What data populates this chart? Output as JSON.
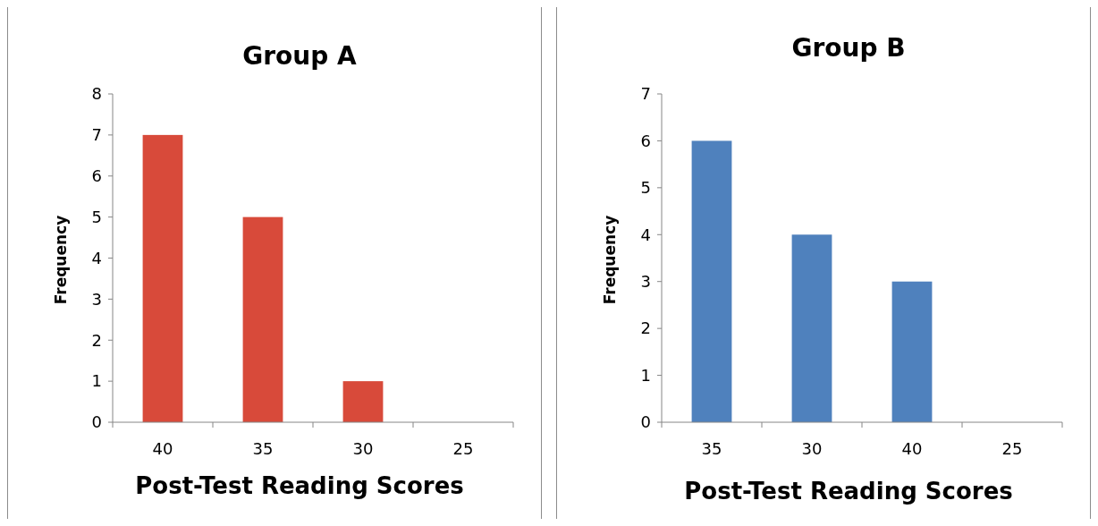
{
  "chart_data": [
    {
      "type": "bar",
      "title": "Group A",
      "xlabel": "Post-Test Reading Scores",
      "ylabel": "Frequency",
      "categories": [
        "40",
        "35",
        "30",
        "25"
      ],
      "values": [
        7,
        5,
        1,
        0
      ],
      "color": "#d84a3a",
      "ylim": [
        0,
        8
      ],
      "yticks": [
        0,
        1,
        2,
        3,
        4,
        5,
        6,
        7,
        8
      ],
      "grid": false
    },
    {
      "type": "bar",
      "title": "Group B",
      "xlabel": "Post-Test Reading Scores",
      "ylabel": "Frequency",
      "categories": [
        "35",
        "30",
        "40",
        "25"
      ],
      "values": [
        6,
        4,
        3,
        0
      ],
      "color": "#4f81bd",
      "ylim": [
        0,
        7
      ],
      "yticks": [
        0,
        1,
        2,
        3,
        4,
        5,
        6,
        7
      ],
      "grid": false
    }
  ]
}
